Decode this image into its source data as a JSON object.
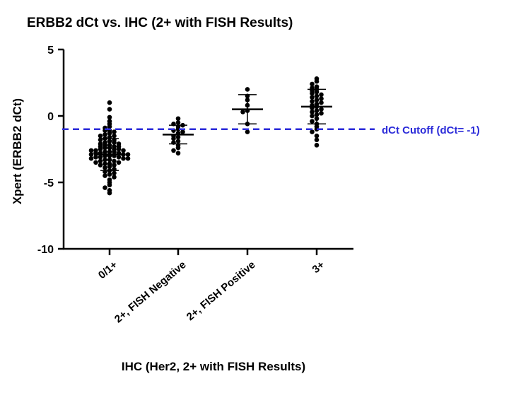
{
  "chart_data": {
    "type": "scatter",
    "title": "ERBB2 dCt vs. IHC (2+ with FISH Results)",
    "xlabel": "IHC (Her2, 2+ with FISH Results)",
    "ylabel": "Xpert (ERBB2 dCt)",
    "ylim": [
      -10,
      5
    ],
    "yticks": [
      "5",
      "0",
      "-5",
      "-10"
    ],
    "ytick_values": [
      5,
      0,
      -5,
      -10
    ],
    "categories": [
      "0/1+",
      "2+, FISH Negative",
      "2+, FISH Positive",
      "3+"
    ],
    "cutoff": {
      "value": -1,
      "label": "dCt Cutoff (dCt= -1)",
      "color": "#2b2bd9"
    },
    "point_color": "#000000",
    "groups": [
      {
        "category": "0/1+",
        "mean": -2.9,
        "sd_low": -4.1,
        "sd_high": -1.7,
        "values": [
          1.0,
          0.5,
          -0.1,
          -0.4,
          -0.6,
          -0.8,
          -0.9,
          -1.1,
          -1.1,
          -1.2,
          -1.3,
          -1.4,
          -1.5,
          -1.5,
          -1.6,
          -1.7,
          -1.8,
          -1.8,
          -1.9,
          -2.0,
          -2.0,
          -2.1,
          -2.1,
          -2.2,
          -2.2,
          -2.3,
          -2.3,
          -2.3,
          -2.4,
          -2.4,
          -2.5,
          -2.5,
          -2.5,
          -2.6,
          -2.6,
          -2.6,
          -2.7,
          -2.7,
          -2.7,
          -2.8,
          -2.8,
          -2.8,
          -2.9,
          -2.9,
          -2.9,
          -3.0,
          -3.0,
          -3.0,
          -3.1,
          -3.1,
          -3.1,
          -3.2,
          -3.2,
          -3.2,
          -3.3,
          -3.3,
          -3.4,
          -3.4,
          -3.5,
          -3.5,
          -3.6,
          -3.6,
          -3.7,
          -3.7,
          -3.8,
          -3.9,
          -4.0,
          -4.1,
          -4.2,
          -4.3,
          -4.4,
          -4.5,
          -4.6,
          -4.8,
          -5.0,
          -5.2,
          -5.4,
          -5.6,
          -5.8
        ]
      },
      {
        "category": "2+, FISH Negative",
        "mean": -1.4,
        "sd_low": -2.1,
        "sd_high": -0.7,
        "values": [
          -0.2,
          -0.5,
          -0.6,
          -0.7,
          -0.8,
          -1.0,
          -1.1,
          -1.2,
          -1.3,
          -1.5,
          -1.6,
          -1.7,
          -1.9,
          -2.0,
          -2.2,
          -2.4,
          -2.6,
          -2.8
        ]
      },
      {
        "category": "2+, FISH Positive",
        "mean": 0.5,
        "sd_low": -0.6,
        "sd_high": 1.6,
        "values": [
          2.0,
          1.5,
          1.2,
          0.8,
          0.4,
          0.3,
          -0.6,
          -1.2
        ]
      },
      {
        "category": "3+",
        "mean": 0.7,
        "sd_low": -0.6,
        "sd_high": 2.0,
        "values": [
          2.8,
          2.6,
          2.4,
          2.2,
          2.1,
          2.0,
          1.9,
          1.8,
          1.7,
          1.6,
          1.5,
          1.4,
          1.3,
          1.2,
          1.1,
          1.0,
          0.9,
          0.8,
          0.7,
          0.6,
          0.5,
          0.4,
          0.3,
          0.2,
          0.1,
          0.0,
          -0.2,
          -0.4,
          -0.6,
          -0.8,
          -1.0,
          -1.2,
          -1.5,
          -1.8,
          -2.2
        ]
      }
    ]
  }
}
